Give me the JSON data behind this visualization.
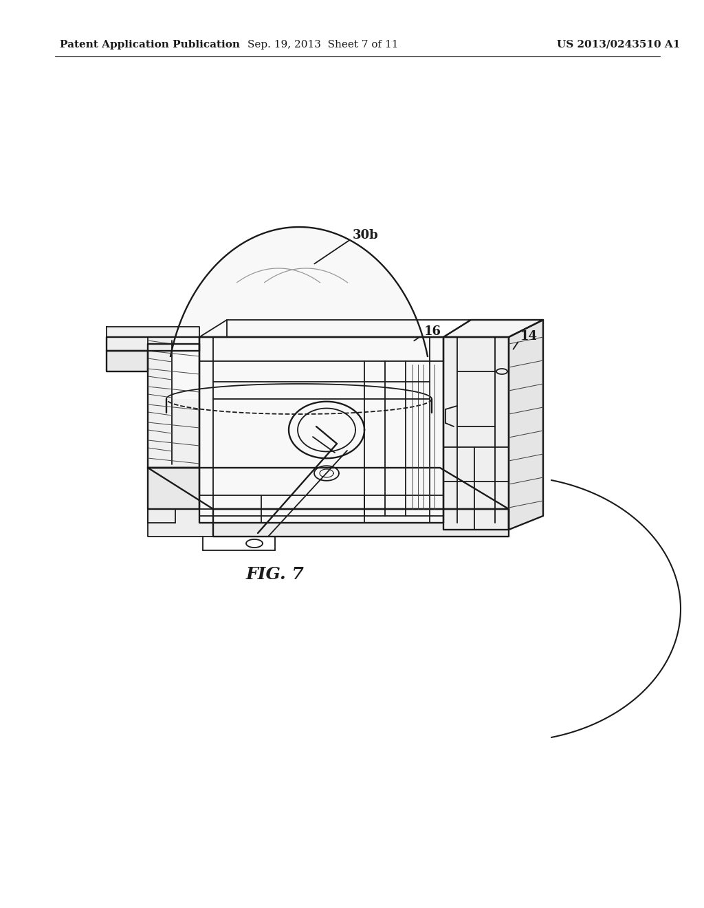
{
  "bg_color": "#ffffff",
  "header_left": "Patent Application Publication",
  "header_mid": "Sep. 19, 2013  Sheet 7 of 11",
  "header_right": "US 2013/0243510 A1",
  "fig_label": "FIG. 7",
  "label_30b": "30b",
  "label_16": "16",
  "label_14": "14",
  "line_color": "#1a1a1a",
  "hatch_color": "#444444",
  "lw": 1.3,
  "lw_thick": 1.7,
  "lw_thin": 0.8
}
